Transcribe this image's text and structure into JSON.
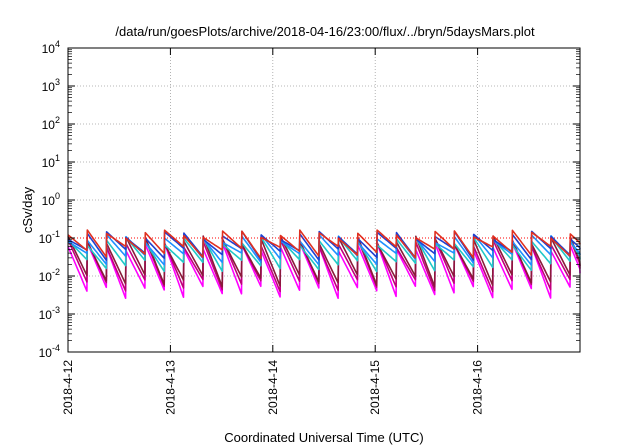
{
  "chart_data": {
    "type": "line",
    "title": "/data/run/goesPlots/archive/2018-04-16/23:00/flux/../bryn/5daysMars.plot",
    "xlabel": "Coordinated Universal Time (UTC)",
    "ylabel": "cSv/day",
    "y_scale": "log",
    "ylim": [
      0.0001,
      10000
    ],
    "y_ticks": [
      {
        "base": "10",
        "exp": "-4"
      },
      {
        "base": "10",
        "exp": "-3"
      },
      {
        "base": "10",
        "exp": "-2"
      },
      {
        "base": "10",
        "exp": "-1"
      },
      {
        "base": "10",
        "exp": "0"
      },
      {
        "base": "10",
        "exp": "1"
      },
      {
        "base": "10",
        "exp": "2"
      },
      {
        "base": "10",
        "exp": "3"
      },
      {
        "base": "10",
        "exp": "4"
      }
    ],
    "x_tick_labels": [
      "2018-4-12",
      "2018-4-13",
      "2018-4-14",
      "2018-4-15",
      "2018-4-16"
    ],
    "x_range_days": [
      0,
      5
    ],
    "grid": true,
    "reference_line": {
      "y": 0.1,
      "color": "#ff0000",
      "style": "dotted"
    },
    "series_pattern": {
      "description": "sawtooth dose-rate curves, ~5 cycles per day",
      "cycles_per_day": 5.3,
      "series": [
        {
          "color": "#ff00ff",
          "peak": 0.06,
          "trough": 0.004
        },
        {
          "color": "#c0007a",
          "peak": 0.075,
          "trough": 0.006
        },
        {
          "color": "#8a1a3a",
          "peak": 0.09,
          "trough": 0.008
        },
        {
          "color": "#20c8c8",
          "peak": 0.085,
          "trough": 0.02
        },
        {
          "color": "#1e90ff",
          "peak": 0.1,
          "trough": 0.03
        },
        {
          "color": "#2040d0",
          "peak": 0.12,
          "trough": 0.04
        },
        {
          "color": "#e03020",
          "peak": 0.13,
          "trough": 0.045
        }
      ]
    },
    "colors": {
      "background": "#ffffff",
      "axes": "#000000",
      "grid": "#a0a0a0",
      "reference": "#ff0000"
    }
  }
}
